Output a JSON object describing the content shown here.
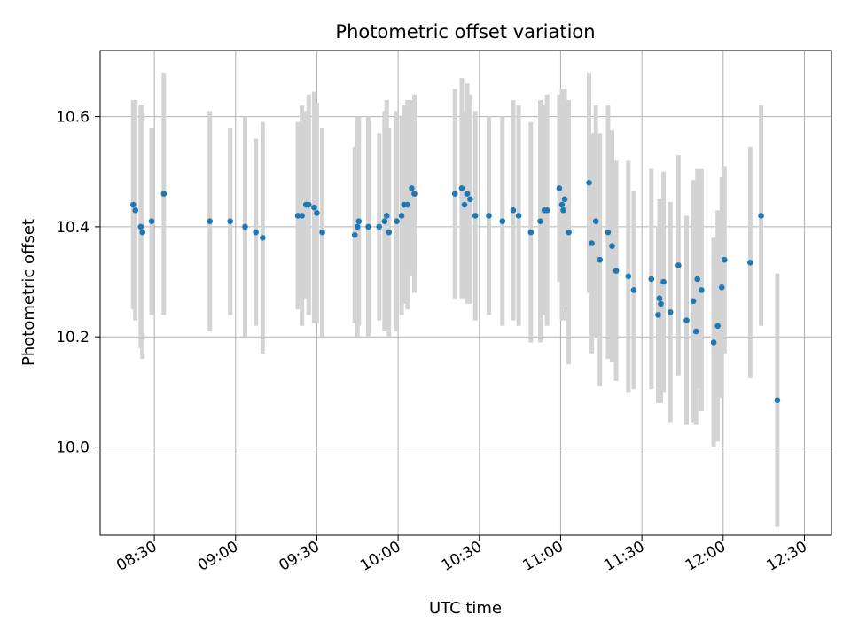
{
  "chart_data": {
    "type": "scatter",
    "title": "Photometric offset variation",
    "xlabel": "UTC time",
    "ylabel": "Photometric offset",
    "xlim_minutes": [
      490,
      760
    ],
    "ylim": [
      9.84,
      10.72
    ],
    "grid": true,
    "x_ticks": [
      {
        "label": "08:30",
        "minute": 510
      },
      {
        "label": "09:00",
        "minute": 540
      },
      {
        "label": "09:30",
        "minute": 570
      },
      {
        "label": "10:00",
        "minute": 600
      },
      {
        "label": "10:30",
        "minute": 630
      },
      {
        "label": "11:00",
        "minute": 660
      },
      {
        "label": "11:30",
        "minute": 690
      },
      {
        "label": "12:00",
        "minute": 720
      },
      {
        "label": "12:30",
        "minute": 750
      }
    ],
    "y_ticks": [
      10.0,
      10.2,
      10.4,
      10.6
    ],
    "marker_color": "#1f77b4",
    "errorbar_color": "#d3d3d3",
    "series": [
      {
        "name": "offset",
        "time_minutes": [
          502.2,
          503.0,
          505.0,
          505.6,
          509.0,
          513.5,
          530.5,
          538.0,
          543.5,
          547.5,
          550.0,
          563.0,
          564.5,
          566.0,
          567.0,
          569.0,
          570.0,
          572.0,
          584.0,
          585.0,
          585.5,
          589.0,
          593.0,
          595.0,
          595.8,
          596.6,
          599.5,
          601.3,
          602.2,
          603.5,
          605.0,
          606.0,
          621.0,
          623.5,
          624.5,
          625.5,
          626.6,
          628.5,
          633.5,
          638.5,
          642.5,
          644.5,
          649.0,
          652.5,
          654.0,
          655.0,
          659.5,
          660.5,
          661.5,
          661.0,
          663.0,
          670.5,
          671.5,
          673.0,
          674.5,
          677.5,
          679.0,
          680.5,
          685.0,
          687.0,
          693.5,
          696.0,
          696.5,
          697.0,
          698.0,
          700.5,
          703.5,
          706.5,
          709.0,
          710.0,
          710.5,
          712.0,
          716.5,
          718.0,
          719.5,
          720.5,
          730.0,
          734.0,
          740.0
        ],
        "values": [
          10.44,
          10.43,
          10.4,
          10.39,
          10.41,
          10.46,
          10.41,
          10.41,
          10.4,
          10.39,
          10.38,
          10.42,
          10.42,
          10.44,
          10.44,
          10.435,
          10.425,
          10.39,
          10.385,
          10.4,
          10.41,
          10.4,
          10.4,
          10.41,
          10.42,
          10.39,
          10.41,
          10.42,
          10.44,
          10.44,
          10.47,
          10.46,
          10.46,
          10.47,
          10.44,
          10.46,
          10.45,
          10.42,
          10.42,
          10.41,
          10.43,
          10.42,
          10.39,
          10.41,
          10.43,
          10.43,
          10.47,
          10.44,
          10.45,
          10.43,
          10.39,
          10.48,
          10.37,
          10.41,
          10.34,
          10.39,
          10.365,
          10.32,
          10.31,
          10.285,
          10.305,
          10.24,
          10.27,
          10.26,
          10.3,
          10.245,
          10.33,
          10.23,
          10.265,
          10.21,
          10.305,
          10.285,
          10.19,
          10.22,
          10.29,
          10.34,
          10.335,
          10.42,
          10.085
        ],
        "errors": [
          0.19,
          0.2,
          0.22,
          0.23,
          0.17,
          0.22,
          0.2,
          0.17,
          0.2,
          0.17,
          0.21,
          0.17,
          0.2,
          0.17,
          0.2,
          0.21,
          0.2,
          0.19,
          0.16,
          0.2,
          0.19,
          0.2,
          0.17,
          0.2,
          0.21,
          0.19,
          0.2,
          0.18,
          0.18,
          0.19,
          0.16,
          0.18,
          0.19,
          0.2,
          0.17,
          0.2,
          0.19,
          0.19,
          0.18,
          0.19,
          0.2,
          0.2,
          0.2,
          0.22,
          0.19,
          0.21,
          0.17,
          0.21,
          0.2,
          0.2,
          0.24,
          0.2,
          0.2,
          0.21,
          0.23,
          0.23,
          0.21,
          0.2,
          0.21,
          0.18,
          0.2,
          0.16,
          0.18,
          0.18,
          0.2,
          0.2,
          0.2,
          0.19,
          0.22,
          0.17,
          0.2,
          0.22,
          0.19,
          0.21,
          0.2,
          0.17,
          0.21,
          0.2,
          0.23
        ]
      }
    ]
  }
}
